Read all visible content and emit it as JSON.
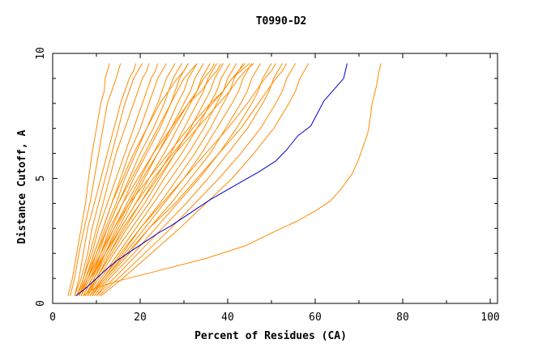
{
  "chart_data": {
    "type": "line",
    "title": "T0990-D2",
    "xlabel": "Percent of Residues (CA)",
    "ylabel": "Distance Cutoff, A",
    "xlim": [
      0,
      100
    ],
    "ylim": [
      0,
      10
    ],
    "x_ticks": [
      0,
      20,
      40,
      60,
      80,
      100
    ],
    "y_ticks": [
      0,
      5,
      10
    ],
    "grid": false,
    "colors": {
      "highlight": "#0000cc",
      "others": "#ff8c00"
    },
    "highlight_series": {
      "x": [
        5.3,
        7.5,
        10,
        12.5,
        15,
        18,
        21,
        24,
        27,
        30,
        33,
        36,
        39.5,
        43,
        47,
        51,
        53.5,
        56,
        59,
        62,
        64.5,
        66.5,
        67.3
      ],
      "y": [
        0.3,
        0.6,
        1.0,
        1.4,
        1.75,
        2.1,
        2.45,
        2.8,
        3.1,
        3.45,
        3.8,
        4.15,
        4.5,
        4.85,
        5.25,
        5.7,
        6.15,
        6.7,
        7.1,
        8.1,
        8.6,
        9.0,
        9.6
      ]
    },
    "other_series": [
      {
        "x": [
          3.5,
          4.5,
          5.5,
          6.5,
          7.5,
          8.2,
          9,
          10,
          10.5,
          11,
          11.8,
          12,
          12.5,
          13
        ],
        "y": [
          0.3,
          1.0,
          2.0,
          3.0,
          4.0,
          5.0,
          6.0,
          7.0,
          7.5,
          8.0,
          8.5,
          9.0,
          9.3,
          9.6
        ]
      },
      {
        "x": [
          7,
          9.5,
          15,
          24,
          35,
          44,
          51,
          56,
          60,
          63.5,
          66,
          68.5,
          70,
          71,
          72,
          72.5,
          73,
          74,
          74.5,
          75
        ],
        "y": [
          0.3,
          0.6,
          0.9,
          1.3,
          1.8,
          2.3,
          2.9,
          3.3,
          3.7,
          4.1,
          4.6,
          5.2,
          5.8,
          6.3,
          6.8,
          7.3,
          8.0,
          8.7,
          9.2,
          9.6
        ]
      },
      {
        "x": [
          4,
          5,
          6,
          7.2,
          8.5,
          9.5,
          10.5,
          11.5,
          12.5,
          13.5,
          14.5,
          15,
          15.5
        ],
        "y": [
          0.3,
          1.0,
          2.0,
          3.0,
          4.0,
          5.0,
          6.0,
          7.0,
          8.0,
          8.5,
          9.0,
          9.3,
          9.6
        ]
      },
      {
        "x": [
          5,
          6,
          7,
          8,
          9.5,
          11,
          12.5,
          14,
          15.5,
          16.5,
          17.5,
          18.5,
          19
        ],
        "y": [
          0.3,
          1.0,
          2.0,
          3.0,
          4.0,
          5.0,
          6.0,
          7.0,
          8.0,
          8.5,
          9.0,
          9.3,
          9.6
        ]
      },
      {
        "x": [
          5,
          6.5,
          8,
          9,
          10.5,
          12,
          13.5,
          15,
          16.5,
          17.5,
          18.5,
          19.5,
          20.5
        ],
        "y": [
          0.3,
          1.0,
          2.0,
          3.0,
          4.0,
          5.0,
          6.0,
          7.0,
          8.0,
          8.5,
          9.0,
          9.3,
          9.6
        ]
      },
      {
        "x": [
          5.5,
          7,
          8.5,
          10,
          11.5,
          13,
          14.5,
          16.5,
          18.5,
          19.5,
          20.5,
          21.5,
          22
        ],
        "y": [
          0.3,
          1.0,
          2.0,
          3.0,
          4.0,
          5.0,
          6.0,
          7.0,
          8.0,
          8.5,
          9.0,
          9.3,
          9.6
        ]
      },
      {
        "x": [
          5.5,
          7,
          9,
          10.5,
          12.5,
          14.5,
          16.5,
          18.5,
          20.5,
          21.5,
          22.5,
          23.5,
          24
        ],
        "y": [
          0.3,
          1.0,
          2.0,
          3.0,
          4.0,
          5.0,
          6.0,
          7.0,
          8.0,
          8.5,
          9.0,
          9.3,
          9.6
        ]
      },
      {
        "x": [
          6,
          7.5,
          9.5,
          11.5,
          13.5,
          15.5,
          17.5,
          20,
          22,
          23,
          24,
          25,
          26
        ],
        "y": [
          0.3,
          1.0,
          2.0,
          3.0,
          4.0,
          5.0,
          6.0,
          7.0,
          8.0,
          8.5,
          9.0,
          9.3,
          9.6
        ]
      },
      {
        "x": [
          6,
          8,
          10,
          12,
          14.5,
          16.5,
          19,
          21.5,
          24,
          25,
          26,
          27,
          28
        ],
        "y": [
          0.3,
          1.0,
          2.0,
          3.0,
          4.0,
          5.0,
          6.0,
          7.0,
          8.0,
          8.5,
          9.0,
          9.3,
          9.6
        ]
      },
      {
        "x": [
          6.5,
          8,
          10.5,
          12.5,
          15,
          17.5,
          20,
          23,
          25.5,
          26.5,
          27.5,
          28.5,
          29.5
        ],
        "y": [
          0.3,
          1.0,
          2.0,
          3.0,
          4.0,
          5.0,
          6.0,
          7.0,
          8.0,
          8.5,
          9.0,
          9.3,
          9.6
        ]
      },
      {
        "x": [
          6.5,
          8.5,
          11,
          13.5,
          16,
          18.5,
          21.5,
          24.5,
          27,
          28,
          29,
          30,
          31
        ],
        "y": [
          0.3,
          1.0,
          2.0,
          3.0,
          4.0,
          5.0,
          6.0,
          7.0,
          8.0,
          8.5,
          9.0,
          9.3,
          9.6
        ]
      },
      {
        "x": [
          7,
          9,
          11.5,
          14,
          17,
          20,
          23,
          26,
          28.5,
          30,
          31,
          32,
          33
        ],
        "y": [
          0.3,
          1.0,
          2.0,
          3.0,
          4.0,
          5.0,
          6.0,
          7.0,
          8.0,
          8.5,
          9.0,
          9.3,
          9.6
        ]
      },
      {
        "x": [
          7,
          9,
          12,
          15,
          18,
          21,
          24,
          27,
          30,
          31.5,
          32.5,
          33.5,
          34.5
        ],
        "y": [
          0.3,
          1.0,
          2.0,
          3.0,
          4.0,
          5.0,
          6.0,
          7.0,
          8.0,
          8.5,
          9.0,
          9.3,
          9.6
        ]
      },
      {
        "x": [
          7.5,
          9.5,
          12.5,
          15.5,
          19,
          22,
          25.5,
          28.5,
          31.5,
          33,
          34,
          35,
          36
        ],
        "y": [
          0.3,
          1.0,
          2.0,
          3.0,
          4.0,
          5.0,
          6.0,
          7.0,
          8.0,
          8.5,
          9.0,
          9.3,
          9.6
        ]
      },
      {
        "x": [
          7.5,
          10,
          13,
          16.5,
          20,
          23.5,
          27,
          30,
          33,
          34.5,
          35.5,
          36.5,
          37.5
        ],
        "y": [
          0.3,
          1.0,
          2.0,
          3.0,
          4.0,
          5.0,
          6.0,
          7.0,
          8.0,
          8.5,
          9.0,
          9.3,
          9.6
        ]
      },
      {
        "x": [
          8,
          10,
          13.5,
          17,
          21,
          24.5,
          28,
          31.5,
          34.5,
          36,
          37,
          38,
          39
        ],
        "y": [
          0.3,
          1.0,
          2.0,
          3.0,
          4.0,
          5.0,
          6.0,
          7.0,
          8.0,
          8.5,
          9.0,
          9.3,
          9.6
        ]
      },
      {
        "x": [
          8,
          10.5,
          14,
          18,
          22,
          25.5,
          29.5,
          33,
          36,
          37.5,
          38.5,
          39.5,
          40.5
        ],
        "y": [
          0.3,
          1.0,
          2.0,
          3.0,
          4.0,
          5.0,
          6.0,
          7.0,
          8.0,
          8.5,
          9.0,
          9.3,
          9.6
        ]
      },
      {
        "x": [
          8.5,
          11,
          15,
          19,
          23,
          27,
          31,
          34.5,
          37.5,
          39,
          40,
          41,
          42
        ],
        "y": [
          0.3,
          1.0,
          2.0,
          3.0,
          4.0,
          5.0,
          6.0,
          7.0,
          8.0,
          8.5,
          9.0,
          9.3,
          9.6
        ]
      },
      {
        "x": [
          9,
          11.5,
          16,
          20,
          24.5,
          28.5,
          32.5,
          36,
          39,
          40.5,
          41.5,
          42.5,
          43.5
        ],
        "y": [
          0.3,
          1.0,
          2.0,
          3.0,
          4.0,
          5.0,
          6.0,
          7.0,
          8.0,
          8.5,
          9.0,
          9.3,
          9.6
        ]
      },
      {
        "x": [
          9,
          12,
          16.5,
          21,
          25.5,
          30,
          34,
          37.5,
          41,
          42.5,
          43.5,
          44.5,
          45.5
        ],
        "y": [
          0.3,
          1.0,
          2.0,
          3.0,
          4.0,
          5.0,
          6.0,
          7.0,
          8.0,
          8.5,
          9.0,
          9.3,
          9.6
        ]
      },
      {
        "x": [
          9.5,
          12.5,
          17.5,
          22,
          27,
          31.5,
          36,
          39.5,
          43,
          44.5,
          45.5,
          46.5,
          47.5
        ],
        "y": [
          0.3,
          1.0,
          2.0,
          3.0,
          4.0,
          5.0,
          6.0,
          7.0,
          8.0,
          8.5,
          9.0,
          9.3,
          9.6
        ]
      },
      {
        "x": [
          10,
          13,
          18.5,
          23.5,
          28.5,
          33.5,
          38,
          42,
          45.5,
          47,
          48,
          49,
          50
        ],
        "y": [
          0.3,
          1.0,
          2.0,
          3.0,
          4.0,
          5.0,
          6.0,
          7.0,
          8.0,
          8.5,
          9.0,
          9.3,
          9.6
        ]
      },
      {
        "x": [
          10,
          14,
          19.5,
          25,
          30.5,
          35.5,
          40,
          44.5,
          48,
          49.5,
          50.5,
          51.5,
          52.5
        ],
        "y": [
          0.3,
          1.0,
          2.0,
          3.0,
          4.0,
          5.0,
          6.0,
          7.0,
          8.0,
          8.5,
          9.0,
          9.3,
          9.6
        ]
      },
      {
        "x": [
          10.5,
          15,
          21,
          27,
          32.5,
          38,
          43,
          47.5,
          51,
          52.5,
          53.5,
          54.5,
          55.5
        ],
        "y": [
          0.3,
          1.0,
          2.0,
          3.0,
          4.0,
          5.0,
          6.0,
          7.0,
          8.0,
          8.5,
          9.0,
          9.3,
          9.6
        ]
      },
      {
        "x": [
          11,
          16,
          22.5,
          29,
          35,
          41,
          46,
          50.5,
          54,
          55.5,
          56.5,
          57.5,
          58.5
        ],
        "y": [
          0.3,
          1.0,
          2.0,
          3.0,
          4.0,
          5.0,
          6.0,
          7.0,
          8.0,
          8.5,
          9.0,
          9.3,
          9.6
        ]
      },
      {
        "x": [
          6,
          8,
          11,
          13,
          16,
          19.5,
          23,
          27,
          31,
          34,
          36,
          37.5,
          38.5
        ],
        "y": [
          0.3,
          1.0,
          2.0,
          3.0,
          4.0,
          5.0,
          6.0,
          7.0,
          8.0,
          8.5,
          9.0,
          9.3,
          9.6
        ]
      },
      {
        "x": [
          7,
          9,
          11,
          14,
          17.5,
          22,
          26.5,
          31,
          36,
          39,
          41,
          42.5,
          44
        ],
        "y": [
          0.3,
          1.0,
          2.0,
          3.0,
          4.0,
          5.0,
          6.0,
          7.0,
          8.0,
          8.5,
          9.0,
          9.3,
          9.6
        ]
      },
      {
        "x": [
          8,
          10,
          13,
          16,
          20,
          24,
          28,
          33,
          38,
          40.5,
          42.5,
          44,
          46
        ],
        "y": [
          0.3,
          1.0,
          2.0,
          3.0,
          4.0,
          5.0,
          6.0,
          7.0,
          8.0,
          8.5,
          9.0,
          9.3,
          9.6
        ]
      },
      {
        "x": [
          5.5,
          7.5,
          9.5,
          11.5,
          13.5,
          16,
          18.5,
          21.5,
          24.5,
          26.5,
          28.5,
          30,
          31
        ],
        "y": [
          0.3,
          1.0,
          2.0,
          3.0,
          4.0,
          5.0,
          6.0,
          7.0,
          8.0,
          8.5,
          9.0,
          9.3,
          9.6
        ]
      },
      {
        "x": [
          9,
          12,
          17,
          22,
          28,
          33,
          38,
          43,
          47,
          49,
          51,
          52.5,
          53.5
        ],
        "y": [
          0.3,
          1.0,
          2.0,
          3.0,
          4.0,
          5.0,
          6.0,
          7.0,
          8.0,
          8.5,
          9.0,
          9.3,
          9.6
        ]
      },
      {
        "x": [
          6.5,
          8.5,
          12,
          15.5,
          19,
          23,
          27.5,
          32,
          36.5,
          39,
          41,
          43,
          45
        ],
        "y": [
          0.3,
          1.0,
          2.0,
          3.0,
          4.0,
          5.0,
          6.0,
          7.0,
          8.0,
          8.5,
          9.0,
          9.3,
          9.6
        ]
      },
      {
        "x": [
          7.5,
          9.5,
          12,
          14.5,
          17.5,
          20.5,
          24,
          27.5,
          31,
          33,
          34.5,
          36,
          37
        ],
        "y": [
          0.3,
          1.0,
          2.0,
          3.0,
          4.0,
          5.0,
          6.0,
          7.0,
          8.0,
          8.5,
          9.0,
          9.3,
          9.6
        ]
      },
      {
        "x": [
          8.5,
          11.5,
          15.5,
          20,
          25,
          30,
          35,
          40,
          44.5,
          46.5,
          48.5,
          50,
          51
        ],
        "y": [
          0.3,
          1.0,
          2.0,
          3.0,
          4.0,
          5.0,
          6.0,
          7.0,
          8.0,
          8.5,
          9.0,
          9.3,
          9.6
        ]
      },
      {
        "x": [
          6,
          7.5,
          10,
          12.5,
          15,
          18,
          21,
          24,
          27,
          28.5,
          30,
          31.5,
          33
        ],
        "y": [
          0.3,
          1.0,
          2.0,
          3.0,
          4.0,
          5.0,
          6.0,
          7.0,
          8.0,
          8.5,
          9.0,
          9.3,
          9.6
        ]
      }
    ]
  }
}
